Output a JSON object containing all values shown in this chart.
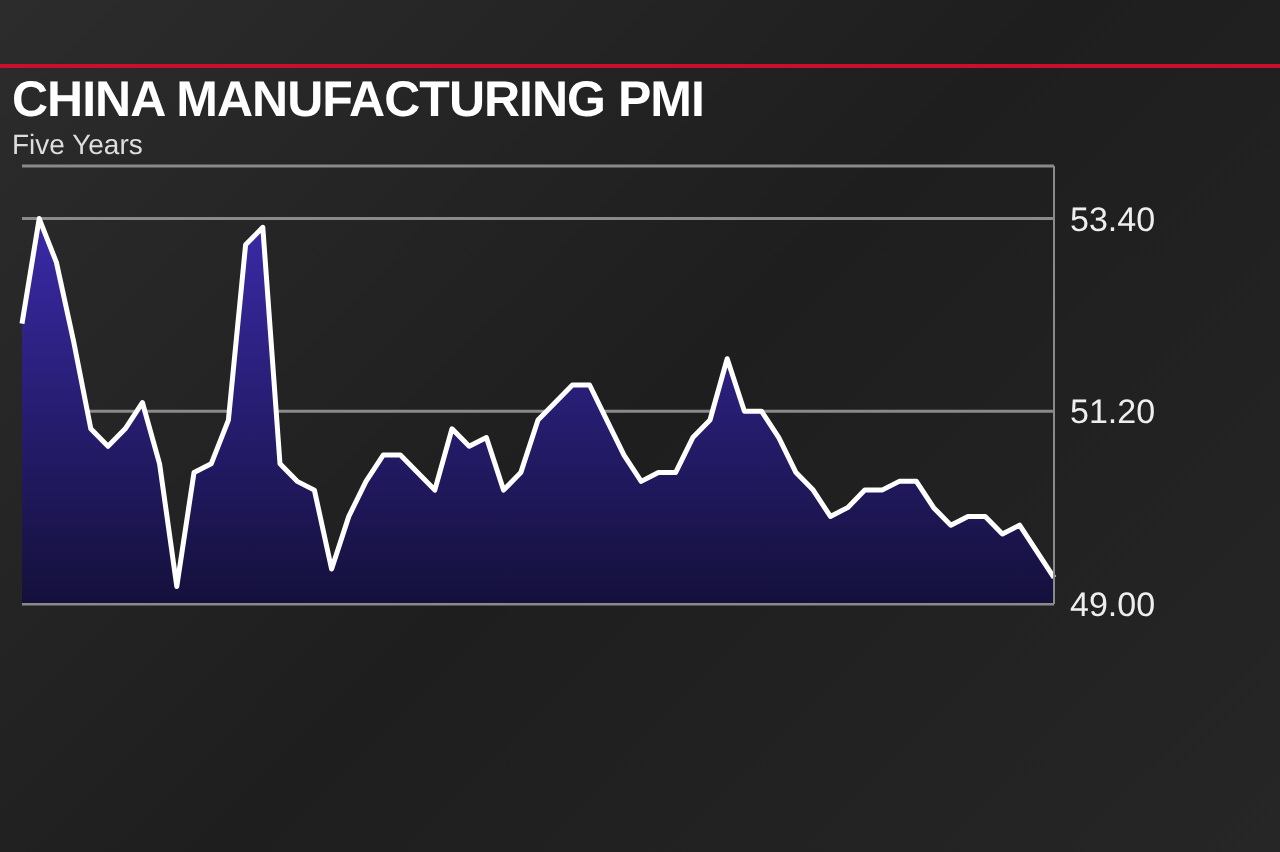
{
  "chart_data": {
    "type": "area",
    "title": "CHINA MANUFACTURING PMI",
    "subtitle": "Five Years",
    "categories": [
      null,
      null,
      null,
      null,
      null,
      null,
      null,
      null,
      null,
      null,
      null,
      null,
      null,
      null,
      null,
      null,
      null,
      null,
      null,
      null,
      null,
      null,
      null,
      null,
      null,
      null,
      null,
      null,
      null,
      null,
      null,
      null,
      null,
      null,
      null,
      null,
      null,
      null,
      null,
      null,
      null,
      null,
      null,
      null,
      null,
      null,
      null,
      null,
      null,
      null,
      null,
      null,
      null,
      null,
      null,
      null,
      null,
      null,
      null,
      null,
      null
    ],
    "series": [
      {
        "color": "#ffffff",
        "values": [
          52.2,
          53.4,
          52.9,
          52.0,
          51.0,
          50.8,
          51.0,
          51.3,
          50.6,
          49.2,
          50.5,
          50.6,
          51.1,
          53.1,
          53.3,
          50.6,
          50.4,
          50.3,
          49.4,
          50.0,
          50.4,
          50.7,
          50.7,
          50.5,
          50.3,
          51.0,
          50.8,
          50.9,
          50.3,
          50.5,
          51.1,
          51.3,
          51.5,
          51.5,
          51.1,
          50.7,
          50.4,
          50.5,
          50.5,
          50.9,
          51.1,
          51.8,
          51.2,
          51.2,
          50.9,
          50.5,
          50.3,
          50.0,
          50.1,
          50.3,
          50.3,
          50.4,
          50.4,
          50.1,
          49.9,
          50.0,
          50.0,
          49.8,
          49.9,
          49.6,
          49.3
        ]
      }
    ],
    "ylim": [
      49,
      54
    ],
    "yticks": [
      {
        "value": 49,
        "label": "49.00"
      },
      {
        "value": 51.2,
        "label": "51.20"
      },
      {
        "value": 53.4,
        "label": "53.40"
      }
    ],
    "grid": "y",
    "legend": false
  }
}
